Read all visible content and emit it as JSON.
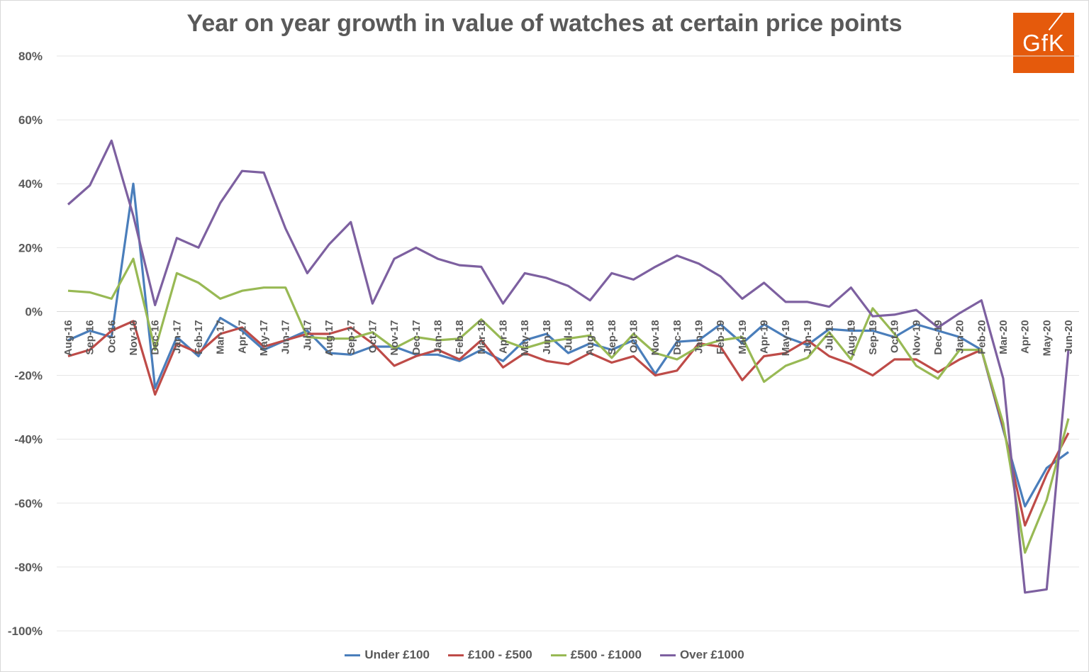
{
  "chart_data": {
    "type": "line",
    "title": "Year on year growth in value of watches at certain price points",
    "xlabel": "",
    "ylabel": "",
    "ylim": [
      -100,
      80
    ],
    "yticks": [
      "80%",
      "60%",
      "40%",
      "20%",
      "0%",
      "-20%",
      "-40%",
      "-60%",
      "-80%",
      "-100%"
    ],
    "grid": true,
    "legend_position": "bottom",
    "categories": [
      "Aug-16",
      "Sep-16",
      "Oct-16",
      "Nov-16",
      "Dec-16",
      "Jan-17",
      "Feb-17",
      "Mar-17",
      "Apr-17",
      "May-17",
      "Jun-17",
      "Jul-17",
      "Aug-17",
      "Sep-17",
      "Oct-17",
      "Nov-17",
      "Dec-17",
      "Jan-18",
      "Feb-18",
      "Mar-18",
      "Apr-18",
      "May-18",
      "Jun-18",
      "Jul-18",
      "Aug-18",
      "Sep-18",
      "Oct-18",
      "Nov-18",
      "Dec-18",
      "Jan-19",
      "Feb-19",
      "Mar-19",
      "Apr-19",
      "May-19",
      "Jun-19",
      "Jul-19",
      "Aug-19",
      "Sep-19",
      "Oct-19",
      "Nov-19",
      "Dec-19",
      "Jan-20",
      "Feb-20",
      "Mar-20",
      "Apr-20",
      "May-20",
      "Jun-20"
    ],
    "series": [
      {
        "name": "Under £100",
        "color": "#4a7ebb",
        "values": [
          -9,
          -6,
          -8,
          40,
          -24,
          -8,
          -14,
          -2,
          -6,
          -12,
          -9,
          -6,
          -13,
          -13.5,
          -11,
          -11,
          -13.5,
          -13.5,
          -15.5,
          -12,
          -15.5,
          -9,
          -7,
          -13,
          -10,
          -12,
          -9,
          -19.5,
          -9.5,
          -9,
          -4,
          -10,
          -4,
          -8,
          -10.5,
          -5.5,
          -6,
          -6,
          -8,
          -4,
          -6,
          -8,
          -12,
          -37,
          -61,
          -49,
          -44
        ]
      },
      {
        "name": "£100 - £500",
        "color": "#be4b48",
        "values": [
          -14,
          -12,
          -6,
          -3,
          -26,
          -10,
          -13,
          -7,
          -5,
          -11,
          -9,
          -7,
          -7,
          -5,
          -10,
          -17,
          -14,
          -12,
          -15,
          -9,
          -17.5,
          -13,
          -15.5,
          -16.5,
          -13,
          -16,
          -14,
          -20,
          -18.5,
          -10,
          -11,
          -21.5,
          -14,
          -13,
          -9,
          -14,
          -16.5,
          -20,
          -15,
          -15,
          -19,
          -15,
          -12,
          -36,
          -67,
          -51,
          -38
        ]
      },
      {
        "name": "£500 - £1000",
        "color": "#98b954",
        "values": [
          6.5,
          6,
          4,
          16.5,
          -12,
          12,
          9,
          4,
          6.5,
          7.5,
          7.5,
          -8,
          -8.5,
          -8.5,
          -6.5,
          -11.5,
          -8,
          -9,
          -8.5,
          -2.5,
          -9,
          -11.5,
          -9.5,
          -8.5,
          -7.5,
          -14.5,
          -7,
          -13,
          -15,
          -11,
          -9,
          -8,
          -22,
          -17,
          -14.5,
          -6.5,
          -15,
          1,
          -7,
          -17,
          -21,
          -12,
          -12,
          -35,
          -75.5,
          -59,
          -33.5
        ]
      },
      {
        "name": "Over £1000",
        "color": "#7d60a0",
        "values": [
          33.5,
          39.5,
          53.5,
          30,
          2,
          23,
          20,
          34,
          44,
          43.5,
          26,
          12,
          21,
          28,
          2.5,
          16.5,
          20,
          16.5,
          14.5,
          14,
          2.5,
          12,
          10.5,
          8,
          3.5,
          12,
          10,
          14,
          17.5,
          15,
          11,
          4,
          9,
          3,
          3,
          1.5,
          7.5,
          -1.5,
          -1,
          0.5,
          -5,
          -0.5,
          3.5,
          -21,
          -88,
          -87,
          -12
        ]
      }
    ]
  }
}
